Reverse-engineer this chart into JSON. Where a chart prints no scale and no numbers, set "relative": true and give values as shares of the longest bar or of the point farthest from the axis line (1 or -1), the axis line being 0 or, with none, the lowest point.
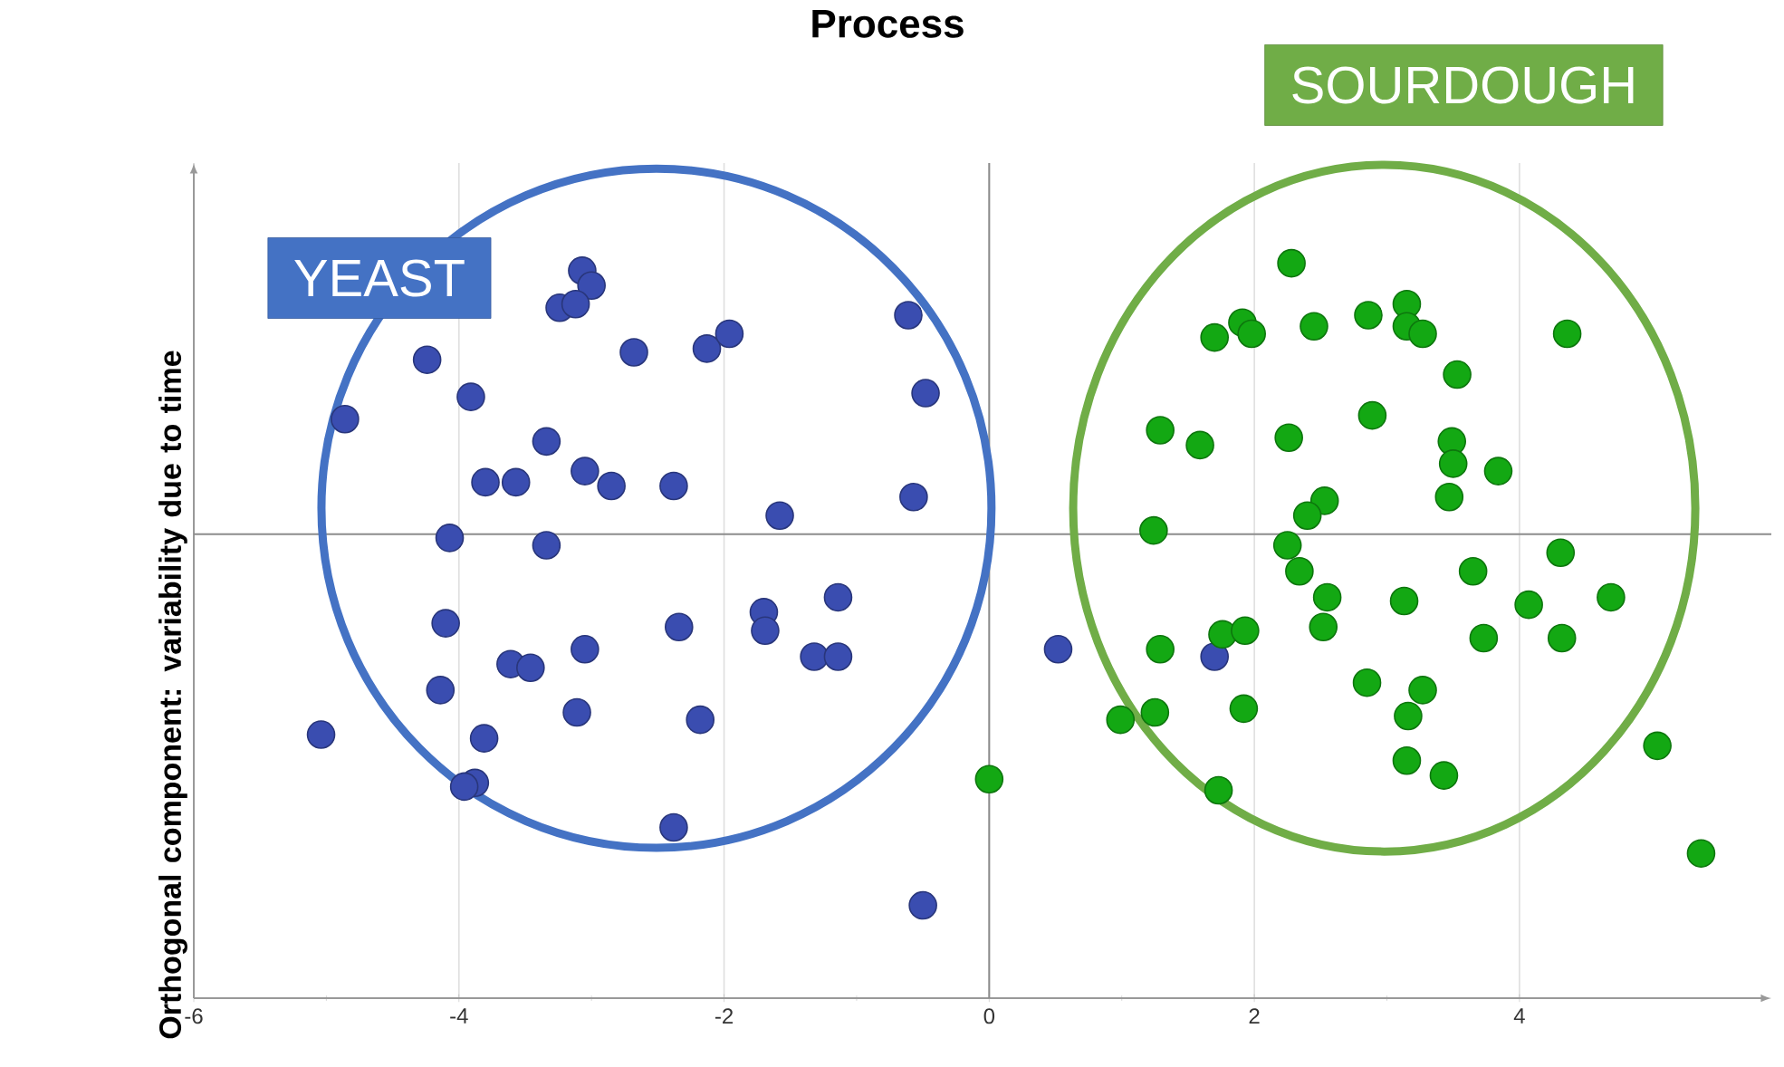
{
  "chart_data": {
    "type": "scatter",
    "title": "Process",
    "ylabel": "Orthogonal component: variability due to time",
    "relative": true,
    "marker": "circle",
    "grid": "x",
    "legend": false,
    "tick_labels": "x",
    "xlim": [
      -6,
      5.9
    ],
    "xticks": [
      -6,
      -4,
      -2,
      0,
      2,
      4
    ],
    "series": [
      {
        "name": "YEAST",
        "color": "#3a4db0",
        "x": [
          -3.07,
          -3.0,
          -3.24,
          -3.12,
          -0.61,
          -2.68,
          -2.13,
          -1.96,
          -4.24,
          -3.91,
          -4.86,
          -0.48,
          -3.34,
          -3.8,
          -3.57,
          -3.05,
          -2.85,
          -2.38,
          -0.57,
          -1.58,
          -4.07,
          -3.34,
          -1.14,
          -1.7,
          -1.69,
          -4.1,
          -2.34,
          -3.05,
          -3.61,
          -3.46,
          -1.32,
          -1.14,
          -4.14,
          -3.11,
          -2.18,
          -5.04,
          -3.81,
          -3.88,
          -3.96,
          -2.38,
          -0.5,
          0.52,
          1.7
        ],
        "values": [
          0.71,
          0.67,
          0.61,
          0.62,
          0.59,
          0.49,
          0.5,
          0.54,
          0.47,
          0.37,
          0.31,
          0.38,
          0.25,
          0.14,
          0.14,
          0.17,
          0.13,
          0.13,
          0.1,
          0.05,
          -0.01,
          -0.03,
          -0.17,
          -0.21,
          -0.26,
          -0.24,
          -0.25,
          -0.31,
          -0.35,
          -0.36,
          -0.33,
          -0.33,
          -0.42,
          -0.48,
          -0.5,
          -0.54,
          -0.55,
          -0.67,
          -0.68,
          -0.79,
          -1.0,
          -0.31,
          -0.33
        ]
      },
      {
        "name": "SOURDOUGH",
        "color": "#13a813",
        "x": [
          2.28,
          1.91,
          1.7,
          1.98,
          2.45,
          2.86,
          3.15,
          3.15,
          3.27,
          4.36,
          3.53,
          1.29,
          1.59,
          2.26,
          2.89,
          3.49,
          3.5,
          3.84,
          3.47,
          2.53,
          2.4,
          1.24,
          2.25,
          2.34,
          4.31,
          3.65,
          2.55,
          3.13,
          4.07,
          4.69,
          2.52,
          3.73,
          4.32,
          1.29,
          1.76,
          1.93,
          2.85,
          3.27,
          3.16,
          0.99,
          1.25,
          1.92,
          3.15,
          3.43,
          5.04,
          1.73,
          5.37,
          0.0
        ],
        "values": [
          0.73,
          0.57,
          0.53,
          0.54,
          0.56,
          0.59,
          0.62,
          0.56,
          0.54,
          0.54,
          0.43,
          0.28,
          0.24,
          0.26,
          0.32,
          0.25,
          0.19,
          0.17,
          0.1,
          0.09,
          0.05,
          0.01,
          -0.03,
          -0.1,
          -0.05,
          -0.1,
          -0.17,
          -0.18,
          -0.19,
          -0.17,
          -0.25,
          -0.28,
          -0.28,
          -0.31,
          -0.27,
          -0.26,
          -0.4,
          -0.42,
          -0.49,
          -0.5,
          -0.48,
          -0.47,
          -0.61,
          -0.65,
          -0.57,
          -0.69,
          -0.86,
          -0.66
        ]
      }
    ]
  }
}
